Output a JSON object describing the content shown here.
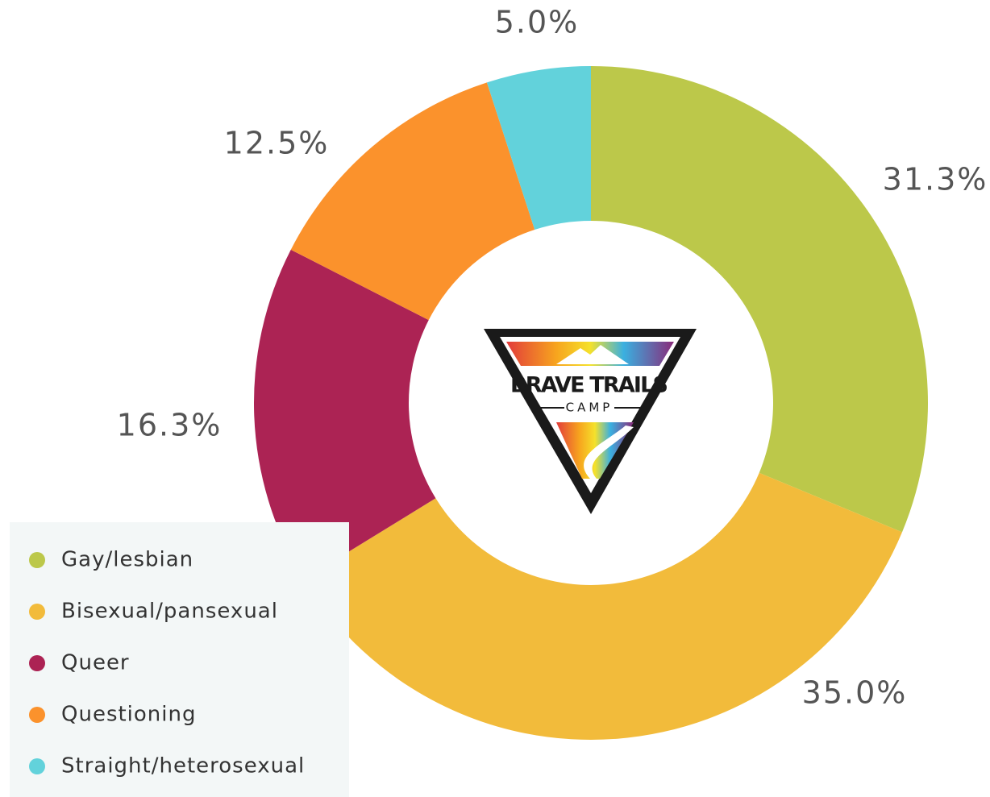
{
  "chart_data": {
    "type": "donut",
    "categories": [
      "Gay/lesbian",
      "Bisexual/pansexual",
      "Queer",
      "Questioning",
      "Straight/heterosexual"
    ],
    "values": [
      31.3,
      35,
      16.3,
      12.5,
      5
    ],
    "value_labels": [
      "31.3%",
      "35.0%",
      "16.3%",
      "12.5%",
      "5.0%"
    ],
    "colors": [
      "#bcc84a",
      "#f2bb3b",
      "#ac2354",
      "#fb922c",
      "#62d2db"
    ],
    "legend": "bottom-left"
  },
  "logo": {
    "title": "BRAVE TRAILS",
    "subtitle": "CAMP"
  }
}
